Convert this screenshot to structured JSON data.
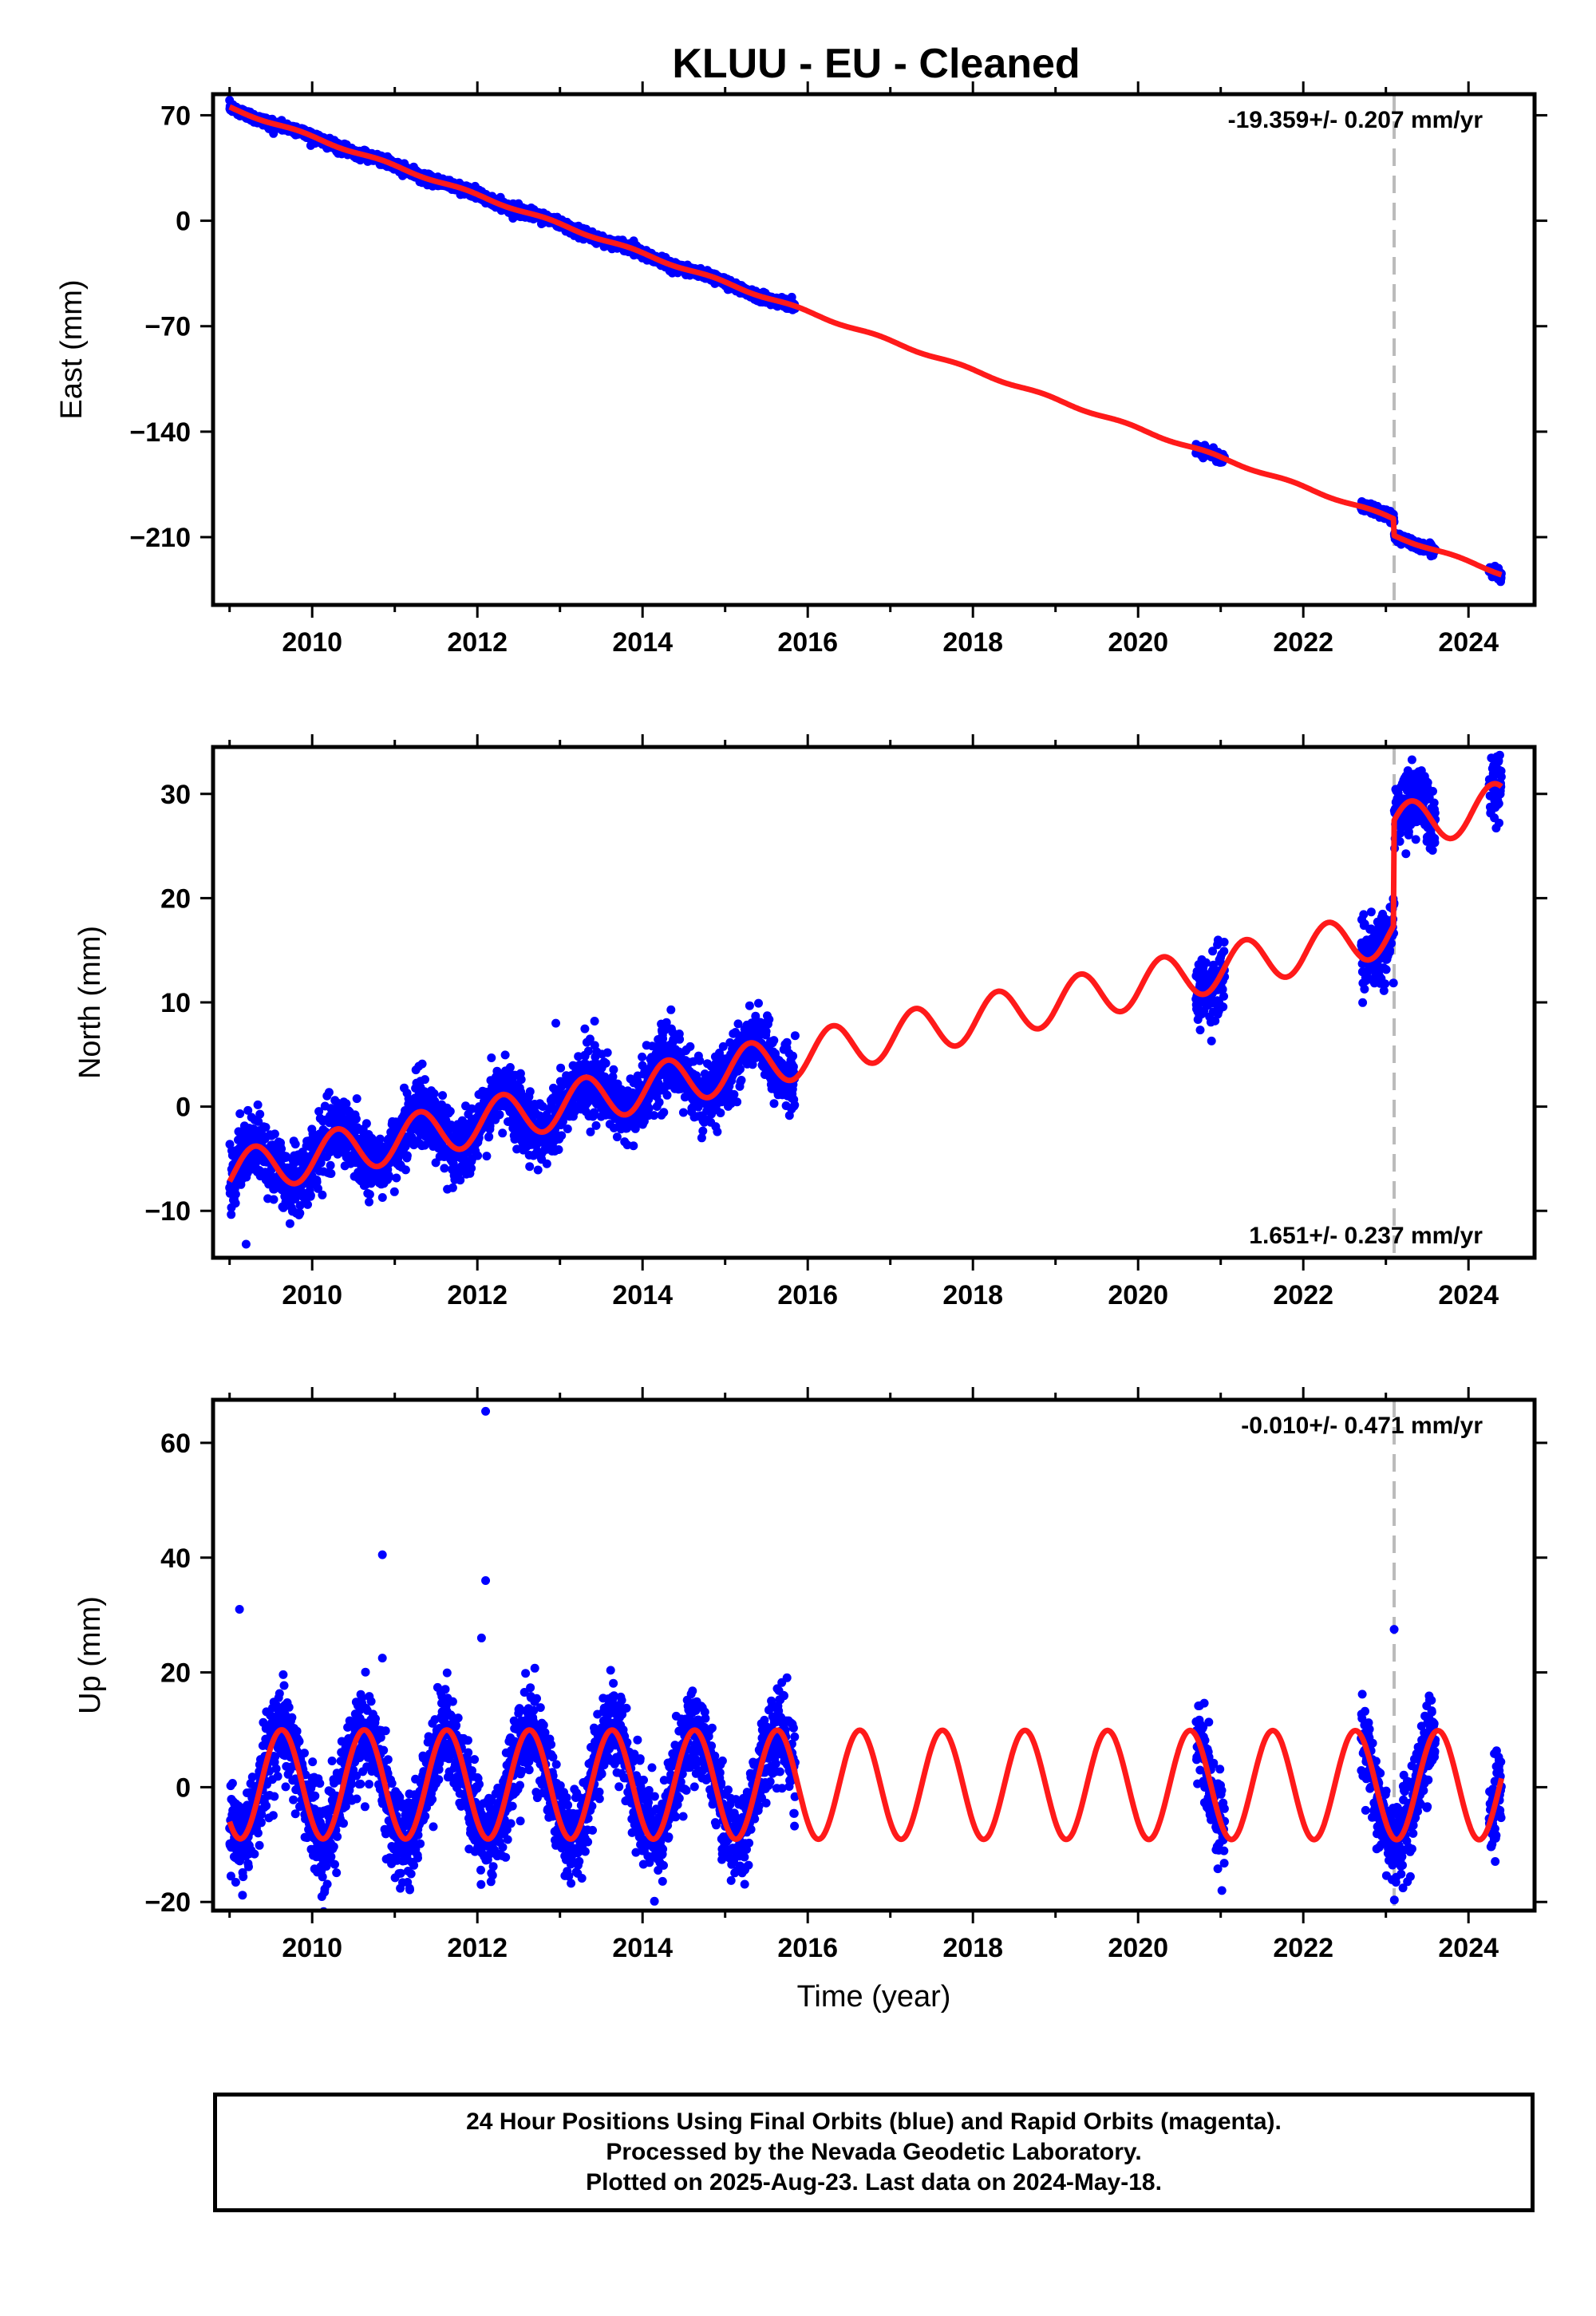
{
  "title": "KLUU  - EU - Cleaned",
  "footer": {
    "line1": "24 Hour Positions Using Final Orbits (blue) and Rapid Orbits (magenta).",
    "line2": "Processed by the Nevada Geodetic Laboratory.",
    "line3": "Plotted on 2025-Aug-23. Last data on 2024-May-18."
  },
  "colors": {
    "data": "#0000ff",
    "model": "#ff1a1a",
    "event_line": "#bbbbbb",
    "axes": "#000000"
  },
  "chart_data": [
    {
      "type": "scatter",
      "ylabel": "East (mm)",
      "xlabel": "",
      "rate_text": "-19.359+/- 0.207 mm/yr",
      "xlim": [
        2008.8,
        2024.8
      ],
      "ylim": [
        -255,
        84
      ],
      "xticks": [
        2010,
        2012,
        2014,
        2016,
        2018,
        2020,
        2022,
        2024
      ],
      "xtick_labels": [
        "2010",
        "2012",
        "2014",
        "2016",
        "2018",
        "2020",
        "2022",
        "2024"
      ],
      "yticks": [
        70,
        0,
        -70,
        -140,
        -210
      ],
      "ytick_labels": [
        "70",
        "0",
        "−70",
        "−140",
        "−210"
      ],
      "event_lines": [
        2023.1
      ],
      "trend": {
        "t0": 2009.0,
        "y0": 75.0,
        "rate": -19.359,
        "seasonal_amp": 0.9,
        "seasonal_phase": 0.6,
        "offsets": [
          [
            2023.1,
            -11.0
          ]
        ]
      },
      "data_segments": [
        [
          2009.0,
          2015.85
        ],
        [
          2020.7,
          2021.05
        ],
        [
          2022.7,
          2023.6
        ],
        [
          2024.25,
          2024.4
        ]
      ],
      "scatter_sd": 1.6,
      "outliers": []
    },
    {
      "type": "scatter",
      "ylabel": "North (mm)",
      "xlabel": "",
      "rate_text": "1.651+/- 0.237 mm/yr",
      "xlim": [
        2008.8,
        2024.8
      ],
      "ylim": [
        -14.5,
        34.5
      ],
      "xticks": [
        2010,
        2012,
        2014,
        2016,
        2018,
        2020,
        2022,
        2024
      ],
      "xtick_labels": [
        "2010",
        "2012",
        "2014",
        "2016",
        "2018",
        "2020",
        "2022",
        "2024"
      ],
      "yticks": [
        30,
        20,
        10,
        0,
        -10
      ],
      "ytick_labels": [
        "30",
        "20",
        "10",
        "0",
        "−10"
      ],
      "event_lines": [
        2023.1
      ],
      "trend": {
        "t0": 2009.0,
        "y0": -6.5,
        "rate": 1.651,
        "seasonal_amp": 2.2,
        "seasonal_phase": 0.05,
        "offsets": [
          [
            2023.1,
            10.0
          ]
        ]
      },
      "data_segments": [
        [
          2009.0,
          2015.85
        ],
        [
          2020.7,
          2021.05
        ],
        [
          2022.7,
          2023.6
        ],
        [
          2024.25,
          2024.4
        ]
      ],
      "scatter_sd": 1.6,
      "outliers": [
        [
          2009.2,
          -13.2
        ],
        [
          2012.95,
          8.0
        ],
        [
          2023.2,
          31.0
        ]
      ]
    },
    {
      "type": "scatter",
      "ylabel": "Up (mm)",
      "xlabel": "Time (year)",
      "rate_text": "-0.010+/- 0.471 mm/yr",
      "xlim": [
        2008.8,
        2024.8
      ],
      "ylim": [
        -21.5,
        67.5
      ],
      "xticks": [
        2010,
        2012,
        2014,
        2016,
        2018,
        2020,
        2022,
        2024
      ],
      "xtick_labels": [
        "2010",
        "2012",
        "2014",
        "2016",
        "2018",
        "2020",
        "2022",
        "2024"
      ],
      "yticks": [
        60,
        40,
        20,
        0,
        -20
      ],
      "ytick_labels": [
        "60",
        "40",
        "20",
        "0",
        "−20"
      ],
      "event_lines": [
        2023.1
      ],
      "trend": {
        "t0": 2009.0,
        "y0": 0.5,
        "rate": -0.01,
        "seasonal_amp": 9.5,
        "seasonal_phase": 0.38,
        "offsets": []
      },
      "data_segments": [
        [
          2009.0,
          2015.85
        ],
        [
          2020.7,
          2021.05
        ],
        [
          2022.7,
          2023.6
        ],
        [
          2024.25,
          2024.4
        ]
      ],
      "scatter_sd": 3.8,
      "outliers": [
        [
          2009.12,
          31.0
        ],
        [
          2010.85,
          40.5
        ],
        [
          2010.85,
          22.5
        ],
        [
          2012.1,
          65.5
        ],
        [
          2012.1,
          36.0
        ],
        [
          2012.05,
          26.0
        ],
        [
          2023.1,
          27.5
        ]
      ]
    }
  ]
}
